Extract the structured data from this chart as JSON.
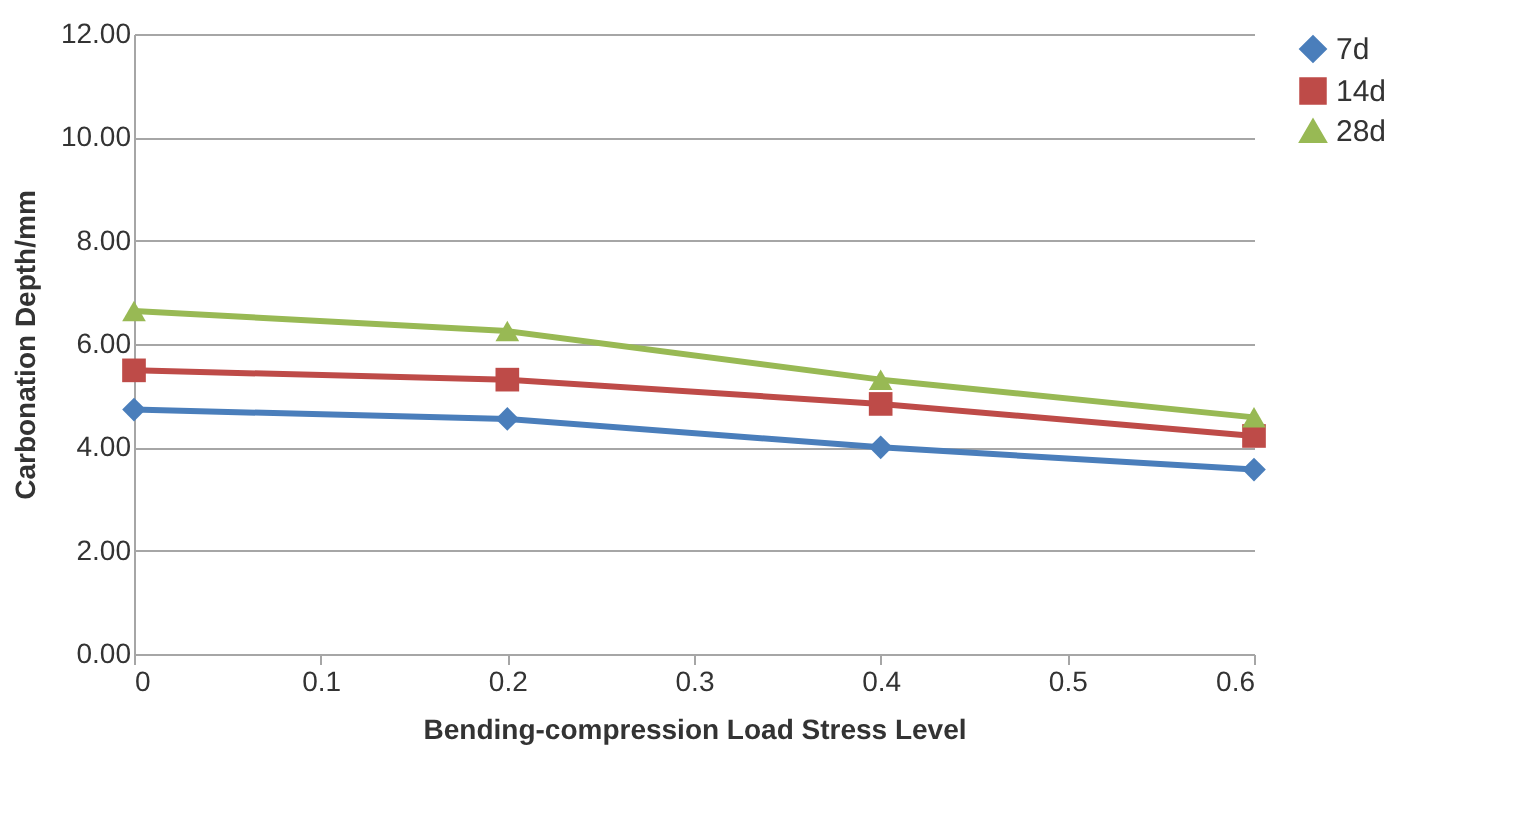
{
  "chart_data": {
    "type": "line",
    "xlabel": "Bending-compression Load Stress Level",
    "ylabel": "Carbonation Depth/mm",
    "x": [
      0,
      0.2,
      0.4,
      0.6
    ],
    "series": [
      {
        "name": "7d",
        "color": "#4a7ebb",
        "marker": "diamond",
        "values": [
          4.73,
          4.55,
          4.0,
          3.57
        ]
      },
      {
        "name": "14d",
        "color": "#be4b48",
        "marker": "square",
        "values": [
          5.49,
          5.31,
          4.84,
          4.22
        ]
      },
      {
        "name": "28d",
        "color": "#98b954",
        "marker": "triangle",
        "values": [
          6.64,
          6.25,
          5.31,
          4.58
        ]
      }
    ],
    "xlim": [
      0,
      0.6
    ],
    "xticks": [
      0,
      0.1,
      0.2,
      0.3,
      0.4,
      0.5,
      0.6
    ],
    "ylim": [
      0,
      12
    ],
    "yticks": [
      {
        "value": 0,
        "label": "0.00"
      },
      {
        "value": 2,
        "label": "2.00"
      },
      {
        "value": 4,
        "label": "4.00"
      },
      {
        "value": 6,
        "label": "6.00"
      },
      {
        "value": 8,
        "label": "8.00"
      },
      {
        "value": 10,
        "label": "10.00"
      },
      {
        "value": 12,
        "label": "12.00"
      }
    ],
    "grid": "y",
    "legend": "right",
    "line_style": "solid"
  }
}
